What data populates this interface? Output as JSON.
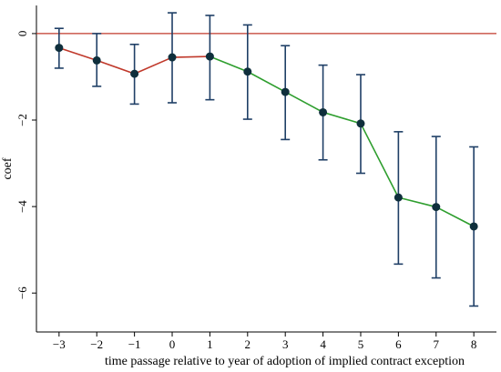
{
  "chart_data": {
    "type": "line",
    "title": "",
    "xlabel": "time passage relative to year of adoption of implied contract exception",
    "ylabel": "coef",
    "x": [
      -3,
      -2,
      -1,
      0,
      1,
      2,
      3,
      4,
      5,
      6,
      7,
      8
    ],
    "x_tick_labels": [
      "−3",
      "−2",
      "−1",
      "0",
      "1",
      "2",
      "3",
      "4",
      "5",
      "6",
      "7",
      "8"
    ],
    "y_ticks": [
      0,
      -2,
      -4,
      -6
    ],
    "y_tick_labels": [
      "0",
      "−2",
      "−4",
      "−6"
    ],
    "xlim": [
      -3.6,
      8.6
    ],
    "ylim": [
      -6.9,
      0.65
    ],
    "series": [
      {
        "values": [
          -0.33,
          -0.62,
          -0.93,
          -0.55,
          -0.53,
          -0.88,
          -1.35,
          -1.82,
          -2.08,
          -3.79,
          -4.01,
          -4.46
        ],
        "ci_low": [
          -0.8,
          -1.22,
          -1.63,
          -1.6,
          -1.53,
          -1.98,
          -2.45,
          -2.92,
          -3.23,
          -5.33,
          -5.65,
          -6.3
        ],
        "ci_high": [
          0.12,
          0.0,
          -0.25,
          0.48,
          0.42,
          0.2,
          -0.28,
          -0.73,
          -0.95,
          -2.27,
          -2.38,
          -2.62
        ]
      }
    ],
    "reference_line": {
      "y": 0
    },
    "grid": false,
    "legend": "none",
    "colors": {
      "reference_line": "#c0392b",
      "pre_period_line": "#c0392b",
      "post_period_line": "#2e9e2e",
      "error_bars": "#1f3f66",
      "markers": "#0f2f3c"
    }
  }
}
